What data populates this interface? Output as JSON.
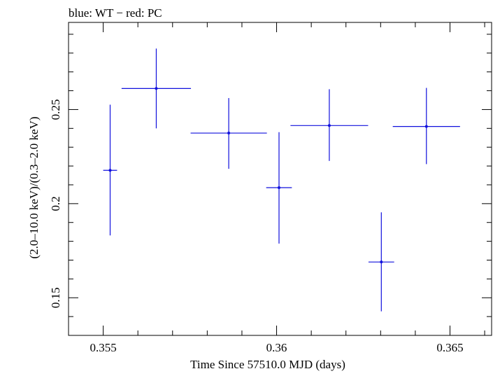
{
  "chart_data": {
    "type": "scatter",
    "title": "blue: WT − red: PC",
    "xlabel": "Time Since 57510.0 MJD (days)",
    "ylabel": "(2.0–10.0 keV)/(0.3–2.0 keV)",
    "xlim": [
      0.354,
      0.3662
    ],
    "ylim": [
      0.13,
      0.2963
    ],
    "x_ticks": [
      {
        "value": 0.355,
        "label": "0.355"
      },
      {
        "value": 0.36,
        "label": "0.36"
      },
      {
        "value": 0.365,
        "label": "0.365"
      }
    ],
    "y_ticks": [
      {
        "value": 0.15,
        "label": "0.15"
      },
      {
        "value": 0.2,
        "label": "0.2"
      },
      {
        "value": 0.25,
        "label": "0.25"
      }
    ],
    "grid": false,
    "colors": {
      "series": "#1010dd",
      "axes": "#000000"
    },
    "series": [
      {
        "name": "WT",
        "points": [
          {
            "x": 0.3552,
            "y": 0.2177,
            "xerr": 0.0002,
            "yerr": [
              0.0346,
              0.0349
            ]
          },
          {
            "x": 0.35653,
            "y": 0.2612,
            "xerr": 0.001,
            "yerr": [
              0.0212,
              0.0212
            ]
          },
          {
            "x": 0.35862,
            "y": 0.2375,
            "xerr": 0.0011,
            "yerr": [
              0.019,
              0.0186
            ]
          },
          {
            "x": 0.36007,
            "y": 0.2085,
            "xerr": 0.00037,
            "yerr": [
              0.0297,
              0.0295
            ]
          },
          {
            "x": 0.36152,
            "y": 0.2415,
            "xerr": 0.00112,
            "yerr": [
              0.0188,
              0.0193
            ]
          },
          {
            "x": 0.36302,
            "y": 0.169,
            "xerr": 0.00037,
            "yerr": [
              0.0262,
              0.0264
            ]
          },
          {
            "x": 0.36432,
            "y": 0.241,
            "xerr": 0.00097,
            "yerr": [
              0.02,
              0.0205
            ]
          }
        ]
      }
    ]
  }
}
